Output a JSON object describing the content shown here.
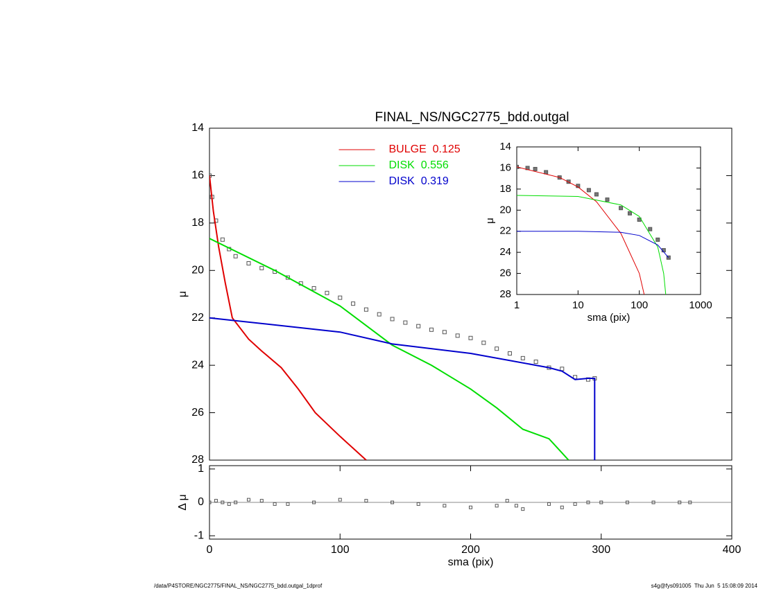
{
  "chart_data": [
    {
      "type": "line",
      "title": "FINAL_NS/NGC2775_bdd.outgal",
      "ylabel": "μ",
      "ylim": [
        14,
        28
      ],
      "y_inverted": true,
      "yticks": [
        14,
        16,
        18,
        20,
        22,
        24,
        26,
        28
      ],
      "xlim": [
        0,
        400
      ],
      "legend": "upper center",
      "series": [
        {
          "mode": "markers",
          "color": "#555555",
          "x": [
            0,
            2,
            5,
            10,
            15,
            20,
            30,
            40,
            50,
            60,
            70,
            80,
            90,
            100,
            110,
            120,
            130,
            140,
            150,
            160,
            170,
            180,
            190,
            200,
            210,
            220,
            230,
            240,
            250,
            260,
            270,
            280,
            290,
            295
          ],
          "values": [
            16.0,
            16.9,
            17.9,
            18.7,
            19.1,
            19.4,
            19.7,
            19.9,
            20.05,
            20.3,
            20.55,
            20.75,
            20.95,
            21.15,
            21.4,
            21.65,
            21.85,
            22.05,
            22.2,
            22.35,
            22.5,
            22.6,
            22.75,
            22.85,
            23.05,
            23.3,
            23.5,
            23.7,
            23.85,
            24.1,
            24.15,
            24.5,
            24.6,
            24.55
          ]
        },
        {
          "name": "BULGE  0.125",
          "mode": "lines",
          "color": "#e00000",
          "x": [
            0,
            3,
            7,
            12,
            17.5,
            30,
            40,
            55,
            68,
            81,
            100,
            120
          ],
          "values": [
            16.0,
            17.5,
            19.0,
            20.5,
            22.0,
            22.9,
            23.4,
            24.1,
            25.0,
            26.0,
            27.0,
            28.0
          ]
        },
        {
          "name": "DISK  0.556",
          "mode": "lines",
          "color": "#00dd00",
          "x": [
            0,
            50,
            100,
            140,
            170,
            200,
            220,
            240,
            260,
            270,
            275
          ],
          "values": [
            18.65,
            20.0,
            21.5,
            23.15,
            24.0,
            25.0,
            25.8,
            26.7,
            27.1,
            27.7,
            28.0
          ]
        },
        {
          "name": "DISK  0.319",
          "mode": "lines",
          "color": "#0000cc",
          "x": [
            0,
            100,
            140,
            200,
            250,
            260,
            270,
            280,
            290,
            295,
            295
          ],
          "values": [
            22.0,
            22.6,
            23.1,
            23.5,
            24.0,
            24.1,
            24.25,
            24.6,
            24.55,
            24.55,
            28.0
          ]
        }
      ]
    },
    {
      "type": "line",
      "xlabel": "sma (pix)",
      "ylabel": "μ",
      "xlog": true,
      "xlim": [
        1,
        1000
      ],
      "xticks": [
        1,
        10,
        100,
        1000
      ],
      "ylim": [
        14,
        28
      ],
      "y_inverted": true,
      "yticks": [
        14,
        16,
        18,
        20,
        22,
        24,
        26,
        28
      ],
      "series": [
        {
          "mode": "markers",
          "color": "#555555",
          "x": [
            1,
            1.5,
            2,
            3,
            5,
            7,
            10,
            15,
            20,
            30,
            50,
            70,
            100,
            150,
            200,
            250,
            300
          ],
          "values": [
            15.9,
            16.0,
            16.1,
            16.4,
            16.9,
            17.3,
            17.7,
            18.1,
            18.5,
            19.0,
            19.8,
            20.3,
            20.9,
            21.8,
            22.8,
            23.8,
            24.5
          ]
        },
        {
          "mode": "lines",
          "color": "#e00000",
          "x": [
            1,
            5,
            10,
            20,
            50,
            100,
            120
          ],
          "values": [
            15.9,
            16.9,
            17.8,
            19.2,
            22.2,
            26.0,
            28.0
          ]
        },
        {
          "mode": "lines",
          "color": "#00dd00",
          "x": [
            1,
            10,
            50,
            100,
            200,
            250,
            270
          ],
          "values": [
            18.6,
            18.7,
            19.5,
            20.6,
            23.5,
            26.0,
            28.0
          ]
        },
        {
          "mode": "lines",
          "color": "#0000cc",
          "x": [
            1,
            10,
            50,
            100,
            200,
            300
          ],
          "values": [
            22.0,
            22.0,
            22.1,
            22.4,
            23.3,
            24.5
          ]
        }
      ]
    },
    {
      "type": "scatter",
      "xlabel": "sma (pix)",
      "ylabel": "Δ μ",
      "xlim": [
        0,
        400
      ],
      "xticks": [
        0,
        100,
        200,
        300,
        400
      ],
      "ylim": [
        -1.1,
        1.1
      ],
      "yticks": [
        -1,
        0,
        1
      ],
      "hline": 0,
      "series": [
        {
          "mode": "markers",
          "color": "#555555",
          "x": [
            0,
            5,
            10,
            15,
            20,
            30,
            40,
            50,
            60,
            80,
            100,
            120,
            140,
            160,
            180,
            200,
            220,
            228,
            235,
            240,
            260,
            270,
            280,
            290,
            300,
            320,
            340,
            360,
            368
          ],
          "values": [
            0,
            0.05,
            0.0,
            -0.05,
            0.0,
            0.08,
            0.05,
            -0.05,
            -0.05,
            0.0,
            0.08,
            0.05,
            0.0,
            -0.05,
            -0.1,
            -0.15,
            -0.1,
            0.05,
            -0.1,
            -0.2,
            -0.05,
            -0.15,
            -0.05,
            0.0,
            0.0,
            0.0,
            0.0,
            0.0,
            0.0
          ]
        }
      ]
    }
  ],
  "footer": {
    "left": "/data/P4STORE/NGC2775/FINAL_NS/NGC2775_bdd.outgal_1dprof",
    "right": "s4g@fys091005  Thu Jun  5 15:08:09 2014"
  }
}
